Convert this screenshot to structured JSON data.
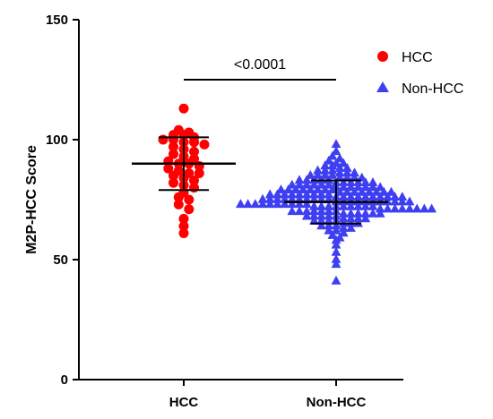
{
  "chart_data": {
    "type": "scatter",
    "ylabel": "M2P-HCC Score",
    "ylim": [
      0,
      150
    ],
    "yticks": [
      0,
      50,
      100,
      150
    ],
    "categories": [
      "HCC",
      "Non-HCC"
    ],
    "annotation": "<0.0001",
    "legend_position": "top-right",
    "series": [
      {
        "name": "HCC",
        "marker": "circle",
        "color": "#ff0000",
        "mean": 90,
        "sd_low": 79,
        "sd_high": 101,
        "values": [
          113,
          104,
          103,
          102,
          102,
          101,
          100,
          100,
          99,
          99,
          98,
          97,
          96,
          95,
          94,
          93,
          92,
          91,
          90,
          90,
          89,
          88,
          87,
          86,
          86,
          85,
          84,
          83,
          82,
          81,
          80,
          78,
          76,
          75,
          73,
          71,
          67,
          64,
          61
        ]
      },
      {
        "name": "Non-HCC",
        "marker": "triangle",
        "color": "#3f3ff2",
        "mean": 74,
        "sd_low": 65,
        "sd_high": 83,
        "values": [
          98,
          95,
          93,
          92,
          91,
          90,
          90,
          89,
          89,
          88,
          88,
          87,
          87,
          87,
          86,
          86,
          86,
          85,
          85,
          85,
          85,
          84,
          84,
          84,
          84,
          83,
          83,
          83,
          83,
          83,
          82,
          82,
          82,
          82,
          82,
          82,
          81,
          81,
          81,
          81,
          81,
          81,
          80,
          80,
          80,
          80,
          80,
          80,
          80,
          79,
          79,
          79,
          79,
          79,
          79,
          79,
          79,
          78,
          78,
          78,
          78,
          78,
          78,
          78,
          78,
          77,
          77,
          77,
          77,
          77,
          77,
          77,
          77,
          77,
          76,
          76,
          76,
          76,
          76,
          76,
          76,
          76,
          76,
          76,
          75,
          75,
          75,
          75,
          75,
          75,
          75,
          75,
          75,
          75,
          74,
          74,
          74,
          74,
          74,
          74,
          74,
          74,
          74,
          74,
          74,
          73,
          73,
          73,
          73,
          73,
          73,
          73,
          73,
          73,
          73,
          72,
          72,
          72,
          72,
          72,
          72,
          72,
          72,
          72,
          71,
          71,
          71,
          71,
          71,
          71,
          71,
          71,
          70,
          70,
          70,
          70,
          70,
          70,
          70,
          69,
          69,
          69,
          69,
          69,
          69,
          68,
          68,
          68,
          68,
          68,
          67,
          67,
          67,
          67,
          66,
          66,
          66,
          66,
          65,
          65,
          65,
          64,
          64,
          64,
          63,
          63,
          62,
          62,
          61,
          60,
          59,
          58,
          56,
          53,
          50,
          48,
          41
        ]
      }
    ]
  }
}
